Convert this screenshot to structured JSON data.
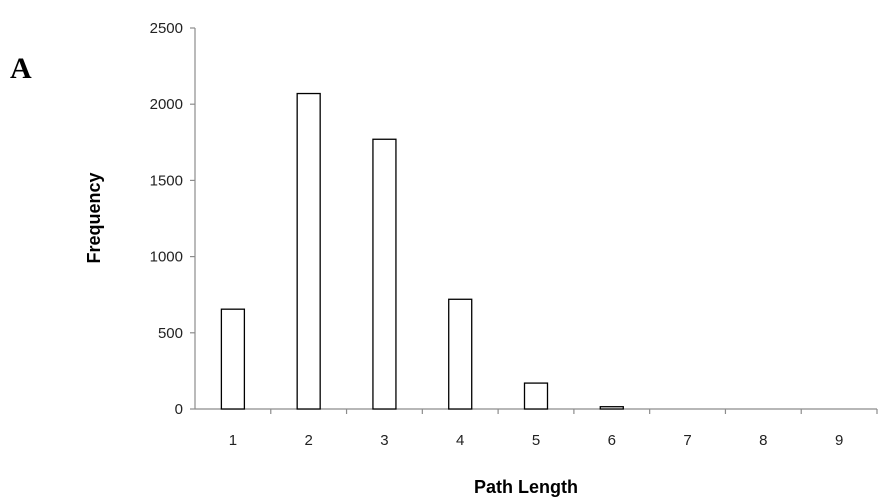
{
  "panel_label": "A",
  "chart_data": {
    "type": "bar",
    "title": "",
    "xlabel": "Path Length",
    "ylabel": "Frequency",
    "categories": [
      "1",
      "2",
      "3",
      "4",
      "5",
      "6",
      "7",
      "8",
      "9"
    ],
    "values": [
      655,
      2070,
      1770,
      720,
      170,
      15,
      0,
      0,
      0
    ],
    "ylim": [
      0,
      2500
    ],
    "yticks": [
      0,
      500,
      1000,
      1500,
      2000,
      2500
    ],
    "grid": false,
    "legend": "none",
    "colors": {
      "bar_fill": "#ffffff",
      "bar_stroke": "#000000",
      "axis": "#8c8c8c"
    }
  }
}
